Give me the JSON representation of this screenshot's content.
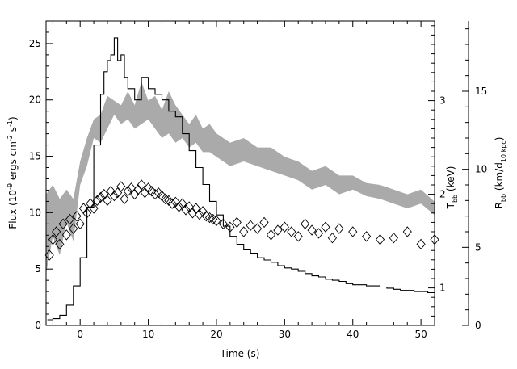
{
  "chart_data": {
    "type": "line",
    "xlabel": "Time (s)",
    "ylabel_left_main": "Flux (10",
    "ylabel_left_exp1": "-9",
    "ylabel_left_mid": " ergs cm",
    "ylabel_left_exp2": "-2",
    "ylabel_left_mid2": " s",
    "ylabel_left_exp3": "-1",
    "ylabel_left_end": ")",
    "ylabel_right1_main": "T",
    "ylabel_right1_sub": "bb",
    "ylabel_right1_end": " (keV)",
    "ylabel_right2_main": "R",
    "ylabel_right2_sub": "bb",
    "ylabel_right2_mid": " (km/d",
    "ylabel_right2_sub2": "10 kpc",
    "ylabel_right2_end": ")",
    "xlim": [
      -5,
      52
    ],
    "ylim_flux": [
      0,
      27
    ],
    "ylim_temp": [
      0.6,
      3.85
    ],
    "ylim_radius": [
      0,
      19.5
    ],
    "x_ticks": [
      0,
      10,
      20,
      30,
      40,
      50
    ],
    "x_tick_labels": [
      "0",
      "10",
      "20",
      "30",
      "40",
      "50"
    ],
    "flux_ticks": [
      0,
      5,
      10,
      15,
      20,
      25
    ],
    "flux_tick_labels": [
      "0",
      "5",
      "10",
      "15",
      "20",
      "25"
    ],
    "temp_ticks": [
      1,
      2,
      3
    ],
    "temp_tick_labels": [
      "1",
      "2",
      "3"
    ],
    "radius_ticks": [
      0,
      5,
      10,
      15
    ],
    "radius_tick_labels": [
      "0",
      "5",
      "10",
      "15"
    ],
    "series": [
      {
        "kind": "flux",
        "axis": "flux",
        "x": [
          -4.8,
          -4.0,
          -3.0,
          -2.0,
          -1.0,
          0.0,
          1.0,
          2.0,
          3.0,
          3.5,
          4.0,
          4.5,
          5.0,
          5.5,
          6.0,
          6.5,
          7.0,
          8.0,
          9.0,
          10.0,
          11.0,
          12.0,
          13.0,
          14.0,
          15.0,
          16.0,
          17.0,
          18.0,
          19.0,
          20.0,
          21.0,
          22.0,
          23.0,
          24.0,
          25.0,
          26.0,
          27.0,
          28.0,
          29.0,
          30.0,
          31.0,
          32.0,
          33.0,
          34.0,
          35.0,
          36.0,
          37.0,
          38.0,
          39.0,
          40.0,
          41.0,
          42.0,
          43.0,
          44.0,
          45.0,
          46.0,
          47.0,
          48.0,
          49.0,
          50.0,
          51.0,
          52.0
        ],
        "values": [
          0.5,
          0.6,
          0.9,
          1.8,
          3.5,
          6.0,
          10.5,
          16.0,
          20.5,
          22.5,
          23.5,
          24.0,
          25.5,
          23.5,
          24.0,
          22.0,
          21.0,
          20.0,
          22.0,
          21.0,
          20.5,
          20.0,
          19.0,
          18.5,
          17.0,
          15.5,
          14.0,
          12.5,
          11.0,
          9.8,
          8.8,
          7.9,
          7.2,
          6.7,
          6.4,
          6.0,
          5.8,
          5.6,
          5.3,
          5.1,
          5.0,
          4.8,
          4.6,
          4.4,
          4.3,
          4.1,
          4.0,
          3.9,
          3.7,
          3.6,
          3.6,
          3.5,
          3.5,
          3.4,
          3.3,
          3.2,
          3.1,
          3.1,
          3.0,
          3.0,
          2.9,
          2.9
        ]
      },
      {
        "kind": "temperature",
        "axis": "temp",
        "x": [
          -5.0,
          -4.0,
          -3.0,
          -2.0,
          -1.0,
          0.0,
          1.0,
          2.0,
          3.0,
          4.0,
          5.0,
          6.0,
          7.0,
          8.0,
          9.0,
          10.0,
          11.0,
          12.0,
          13.0,
          14.0,
          15.0,
          16.0,
          17.0,
          18.0,
          19.0,
          20.0,
          22.0,
          24.0,
          26.0,
          28.0,
          30.0,
          32.0,
          34.0,
          36.0,
          38.0,
          40.0,
          42.0,
          44.0,
          46.0,
          48.0,
          50.0,
          52.0
        ],
        "low": [
          1.15,
          1.55,
          1.35,
          1.7,
          1.5,
          2.1,
          2.3,
          2.6,
          2.55,
          2.7,
          2.85,
          2.75,
          2.8,
          2.7,
          2.75,
          2.8,
          2.7,
          2.6,
          2.65,
          2.55,
          2.6,
          2.5,
          2.55,
          2.45,
          2.45,
          2.4,
          2.3,
          2.35,
          2.3,
          2.25,
          2.2,
          2.15,
          2.05,
          2.1,
          2.0,
          2.05,
          1.98,
          1.95,
          1.9,
          1.85,
          1.9,
          1.78
        ],
        "high": [
          2.0,
          2.1,
          1.95,
          2.05,
          1.95,
          2.35,
          2.6,
          2.8,
          2.85,
          3.05,
          3.0,
          2.95,
          3.1,
          2.95,
          3.2,
          3.0,
          3.05,
          2.9,
          3.1,
          2.95,
          2.85,
          2.75,
          2.85,
          2.7,
          2.75,
          2.65,
          2.55,
          2.6,
          2.5,
          2.5,
          2.4,
          2.35,
          2.25,
          2.3,
          2.2,
          2.2,
          2.12,
          2.1,
          2.05,
          2.0,
          2.05,
          1.92
        ]
      },
      {
        "kind": "radius",
        "axis": "radius",
        "x": [
          -4.5,
          -4.0,
          -3.5,
          -3.0,
          -2.5,
          -2.0,
          -1.5,
          -1.0,
          -0.5,
          0.0,
          0.5,
          1.0,
          1.5,
          2.0,
          2.5,
          3.0,
          3.5,
          4.0,
          4.5,
          5.0,
          5.5,
          6.0,
          6.5,
          7.0,
          7.5,
          8.0,
          8.5,
          9.0,
          9.5,
          10.0,
          10.5,
          11.0,
          11.5,
          12.0,
          12.5,
          13.0,
          13.5,
          14.0,
          14.5,
          15.0,
          15.5,
          16.0,
          16.5,
          17.0,
          17.5,
          18.0,
          18.5,
          19.0,
          19.5,
          20.0,
          21.0,
          22.0,
          23.0,
          24.0,
          25.0,
          26.0,
          27.0,
          28.0,
          29.0,
          30.0,
          31.0,
          32.0,
          33.0,
          34.0,
          35.0,
          36.0,
          37.0,
          38.0,
          40.0,
          42.0,
          44.0,
          46.0,
          48.0,
          50.0,
          52.0
        ],
        "values": [
          4.5,
          5.5,
          6.0,
          5.2,
          6.5,
          5.8,
          6.8,
          6.2,
          7.0,
          6.5,
          7.5,
          7.2,
          7.8,
          7.5,
          8.0,
          8.2,
          8.4,
          8.0,
          8.6,
          8.3,
          8.5,
          8.9,
          8.1,
          8.6,
          8.8,
          8.4,
          8.7,
          9.0,
          8.5,
          8.8,
          8.6,
          8.4,
          8.5,
          8.3,
          8.1,
          8.0,
          7.8,
          7.9,
          7.6,
          7.8,
          7.4,
          7.6,
          7.2,
          7.5,
          7.1,
          7.3,
          7.0,
          6.9,
          6.8,
          6.7,
          6.5,
          6.3,
          6.6,
          6.0,
          6.4,
          6.2,
          6.6,
          5.8,
          6.1,
          6.3,
          6.0,
          5.7,
          6.5,
          6.1,
          5.9,
          6.3,
          5.6,
          6.2,
          6.0,
          5.7,
          5.5,
          5.6,
          6.0,
          5.2,
          5.5
        ]
      }
    ]
  }
}
